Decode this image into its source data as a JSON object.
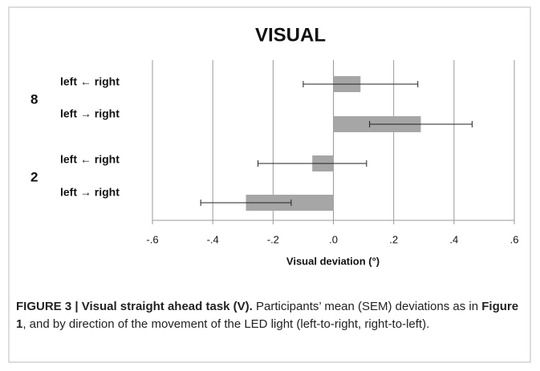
{
  "chart_data": {
    "type": "hbar_error",
    "title": "VISUAL",
    "groups": [
      "8",
      "2"
    ],
    "categories": [
      "left ← right",
      "left → right",
      "left ← right",
      "left → right"
    ],
    "values": [
      0.09,
      0.29,
      -0.07,
      -0.29
    ],
    "errors": [
      0.19,
      0.17,
      0.18,
      0.15
    ],
    "color": "#a6a6a6",
    "xlabel": "Visual deviation (°)",
    "xlim": [
      -0.6,
      0.6
    ],
    "xticks": [
      {
        "value": -0.6,
        "label": "-.6"
      },
      {
        "value": -0.4,
        "label": "-.4"
      },
      {
        "value": -0.2,
        "label": "-.2"
      },
      {
        "value": 0,
        "label": ".0"
      },
      {
        "value": 0.2,
        "label": ".2"
      },
      {
        "value": 0.4,
        "label": ".4"
      },
      {
        "value": 0.6,
        "label": ".6"
      }
    ],
    "grid": true
  },
  "caption": {
    "parts": [
      {
        "text": "FIGURE 3 | Visual straight ahead task (V).",
        "bold": true
      },
      {
        "text": " Participants’ mean (SEM) deviations as in ",
        "bold": false
      },
      {
        "text": "Figure 1",
        "bold": true
      },
      {
        "text": ", and by direction of the movement of the LED light (left-to-right, right-to-left).",
        "bold": false
      }
    ]
  }
}
